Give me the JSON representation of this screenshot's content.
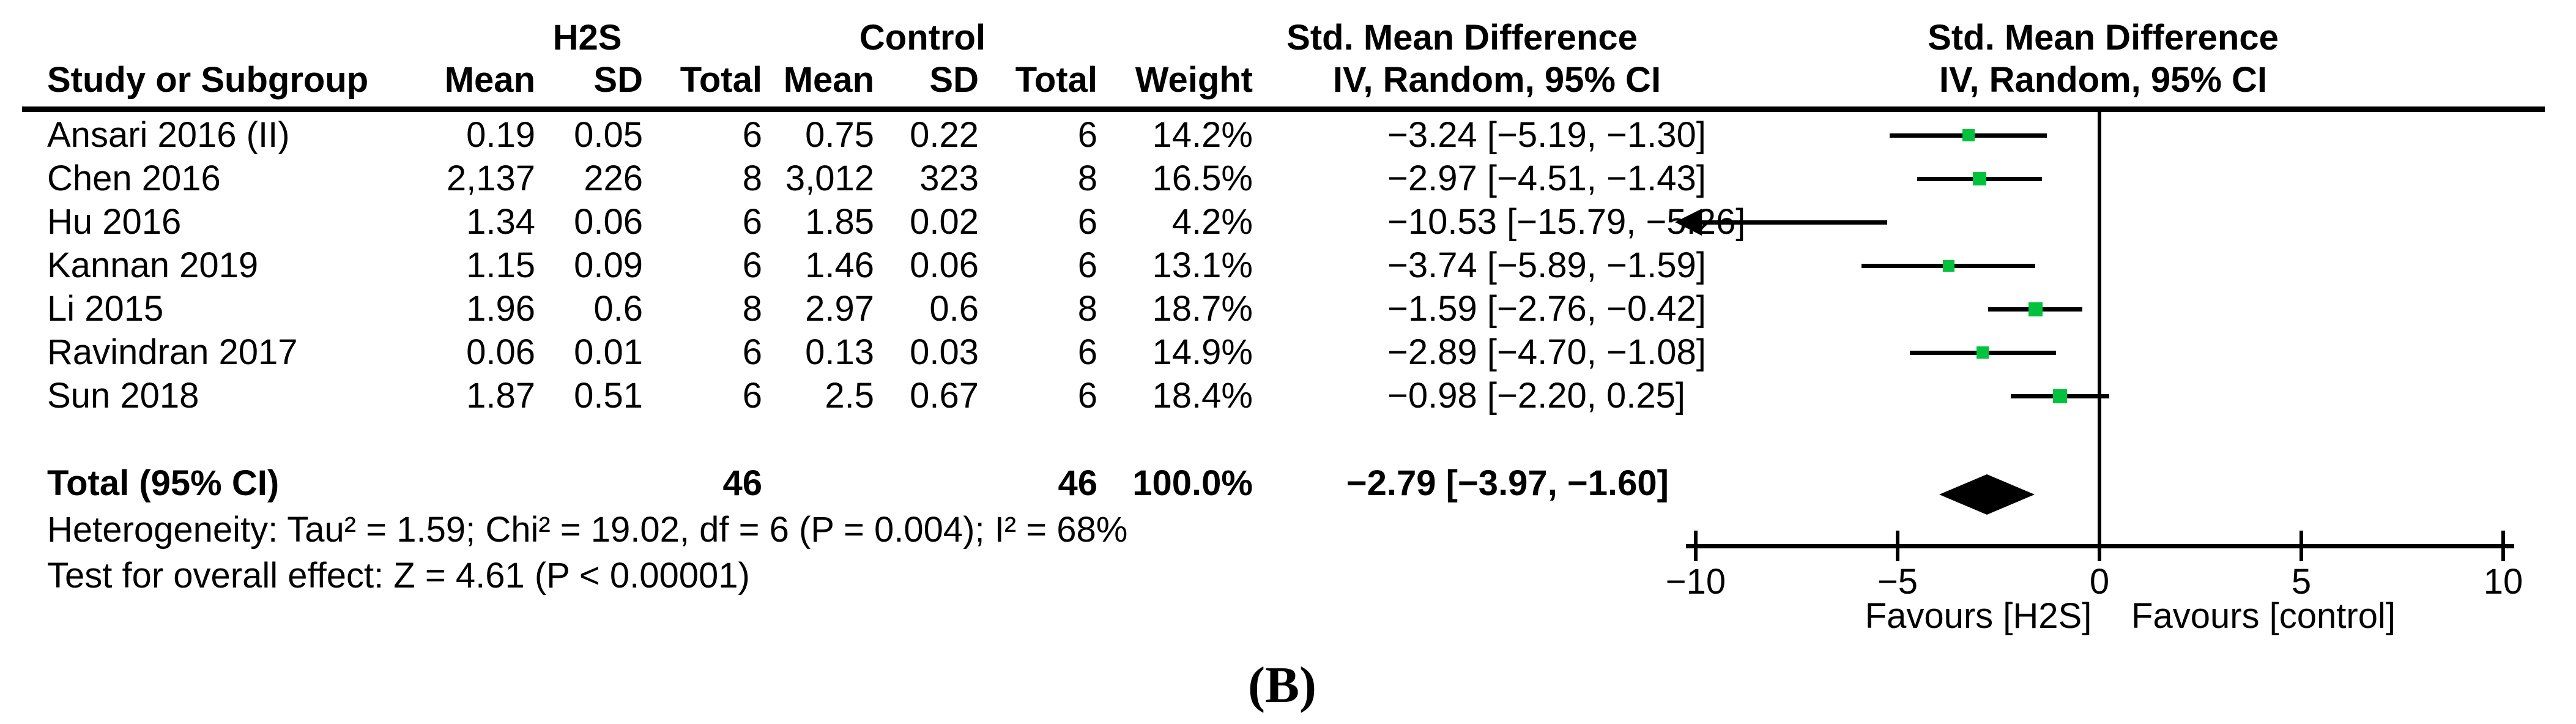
{
  "caption": "(B)",
  "header": {
    "group_h2s": "H2S",
    "group_control": "Control",
    "smd_text_col": "Std. Mean Difference",
    "smd_plot_col": "Std. Mean Difference",
    "method_text_col": "IV, Random, 95% CI",
    "method_plot_col": "IV, Random, 95% CI",
    "study": "Study or Subgroup",
    "mean": "Mean",
    "sd": "SD",
    "total": "Total",
    "weight": "Weight"
  },
  "studies": [
    {
      "name": "Ansari 2016 (II)",
      "h2s_mean": "0.19",
      "h2s_sd": "0.05",
      "h2s_total": "6",
      "ctrl_mean": "0.75",
      "ctrl_sd": "0.22",
      "ctrl_total": "6",
      "weight": "14.2%",
      "ci_text": "−3.24 [−5.19, −1.30]",
      "est": -3.24,
      "lo": -5.19,
      "hi": -1.3,
      "weight_pct": 14.2
    },
    {
      "name": "Chen 2016",
      "h2s_mean": "2,137",
      "h2s_sd": "226",
      "h2s_total": "8",
      "ctrl_mean": "3,012",
      "ctrl_sd": "323",
      "ctrl_total": "8",
      "weight": "16.5%",
      "ci_text": "−2.97 [−4.51, −1.43]",
      "est": -2.97,
      "lo": -4.51,
      "hi": -1.43,
      "weight_pct": 16.5
    },
    {
      "name": "Hu 2016",
      "h2s_mean": "1.34",
      "h2s_sd": "0.06",
      "h2s_total": "6",
      "ctrl_mean": "1.85",
      "ctrl_sd": "0.02",
      "ctrl_total": "6",
      "weight": "4.2%",
      "ci_text": "−10.53 [−15.79, −5.26]",
      "est": -10.53,
      "lo": -15.79,
      "hi": -5.26,
      "weight_pct": 4.2
    },
    {
      "name": "Kannan 2019",
      "h2s_mean": "1.15",
      "h2s_sd": "0.09",
      "h2s_total": "6",
      "ctrl_mean": "1.46",
      "ctrl_sd": "0.06",
      "ctrl_total": "6",
      "weight": "13.1%",
      "ci_text": "−3.74 [−5.89, −1.59]",
      "est": -3.74,
      "lo": -5.89,
      "hi": -1.59,
      "weight_pct": 13.1
    },
    {
      "name": "Li 2015",
      "h2s_mean": "1.96",
      "h2s_sd": "0.6",
      "h2s_total": "8",
      "ctrl_mean": "2.97",
      "ctrl_sd": "0.6",
      "ctrl_total": "8",
      "weight": "18.7%",
      "ci_text": "−1.59 [−2.76, −0.42]",
      "est": -1.59,
      "lo": -2.76,
      "hi": -0.42,
      "weight_pct": 18.7
    },
    {
      "name": "Ravindran 2017",
      "h2s_mean": "0.06",
      "h2s_sd": "0.01",
      "h2s_total": "6",
      "ctrl_mean": "0.13",
      "ctrl_sd": "0.03",
      "ctrl_total": "6",
      "weight": "14.9%",
      "ci_text": "−2.89 [−4.70, −1.08]",
      "est": -2.89,
      "lo": -4.7,
      "hi": -1.08,
      "weight_pct": 14.9
    },
    {
      "name": "Sun 2018",
      "h2s_mean": "1.87",
      "h2s_sd": "0.51",
      "h2s_total": "6",
      "ctrl_mean": "2.5",
      "ctrl_sd": "0.67",
      "ctrl_total": "6",
      "weight": "18.4%",
      "ci_text": "−0.98 [−2.20, 0.25]",
      "est": -0.98,
      "lo": -2.2,
      "hi": 0.25,
      "weight_pct": 18.4
    }
  ],
  "total": {
    "label": "Total (95% CI)",
    "h2s_total": "46",
    "ctrl_total": "46",
    "weight": "100.0%",
    "ci_text": "−2.79 [−3.97, −1.60]",
    "est": -2.79,
    "lo": -3.97,
    "hi": -1.6
  },
  "footnotes": {
    "heterogeneity": "Heterogeneity: Tau² = 1.59; Chi² = 19.02, df = 6 (P = 0.004); I² = 68%",
    "overall_effect": "Test for overall effect: Z = 4.61 (P < 0.00001)"
  },
  "axis": {
    "min": -10,
    "max": 10,
    "ticks": [
      -10,
      -5,
      0,
      5,
      10
    ],
    "tick_labels": [
      "−10",
      "−5",
      "0",
      "5",
      "10"
    ],
    "favours_left": "Favours [H2S]",
    "favours_right": "Favours [control]"
  },
  "colors": {
    "marker_green": "#00C23C",
    "line_black": "#000000",
    "background": "#ffffff"
  },
  "chart_data": {
    "type": "scatter",
    "subtype": "forest-plot",
    "title": "Std. Mean Difference, IV, Random, 95% CI",
    "xlabel_left": "Favours [H2S]",
    "xlabel_right": "Favours [control]",
    "xlim": [
      -10,
      10
    ],
    "x_ticks": [
      -10,
      -5,
      0,
      5,
      10
    ],
    "categories": [
      "Ansari 2016 (II)",
      "Chen 2016",
      "Hu 2016",
      "Kannan 2019",
      "Li 2015",
      "Ravindran 2017",
      "Sun 2018"
    ],
    "series": [
      {
        "name": "Std. Mean Difference (est)",
        "values": [
          -3.24,
          -2.97,
          -10.53,
          -3.74,
          -1.59,
          -2.89,
          -0.98
        ]
      },
      {
        "name": "CI lower",
        "values": [
          -5.19,
          -4.51,
          -15.79,
          -5.89,
          -2.76,
          -4.7,
          -2.2
        ]
      },
      {
        "name": "CI upper",
        "values": [
          -1.3,
          -1.43,
          -5.26,
          -1.59,
          -0.42,
          -1.08,
          0.25
        ]
      },
      {
        "name": "Weight %",
        "values": [
          14.2,
          16.5,
          4.2,
          13.1,
          18.7,
          14.9,
          18.4
        ]
      }
    ],
    "overall": {
      "label": "Total (95% CI)",
      "est": -2.79,
      "lo": -3.97,
      "hi": -1.6,
      "weight": 100.0,
      "h2s_n": 46,
      "control_n": 46
    },
    "heterogeneity": {
      "tau2": 1.59,
      "chi2": 19.02,
      "df": 6,
      "p": 0.004,
      "i2": "68%"
    },
    "overall_effect_test": {
      "z": 4.61,
      "p": "< 0.00001"
    },
    "legend_position": "none",
    "grid": false
  }
}
